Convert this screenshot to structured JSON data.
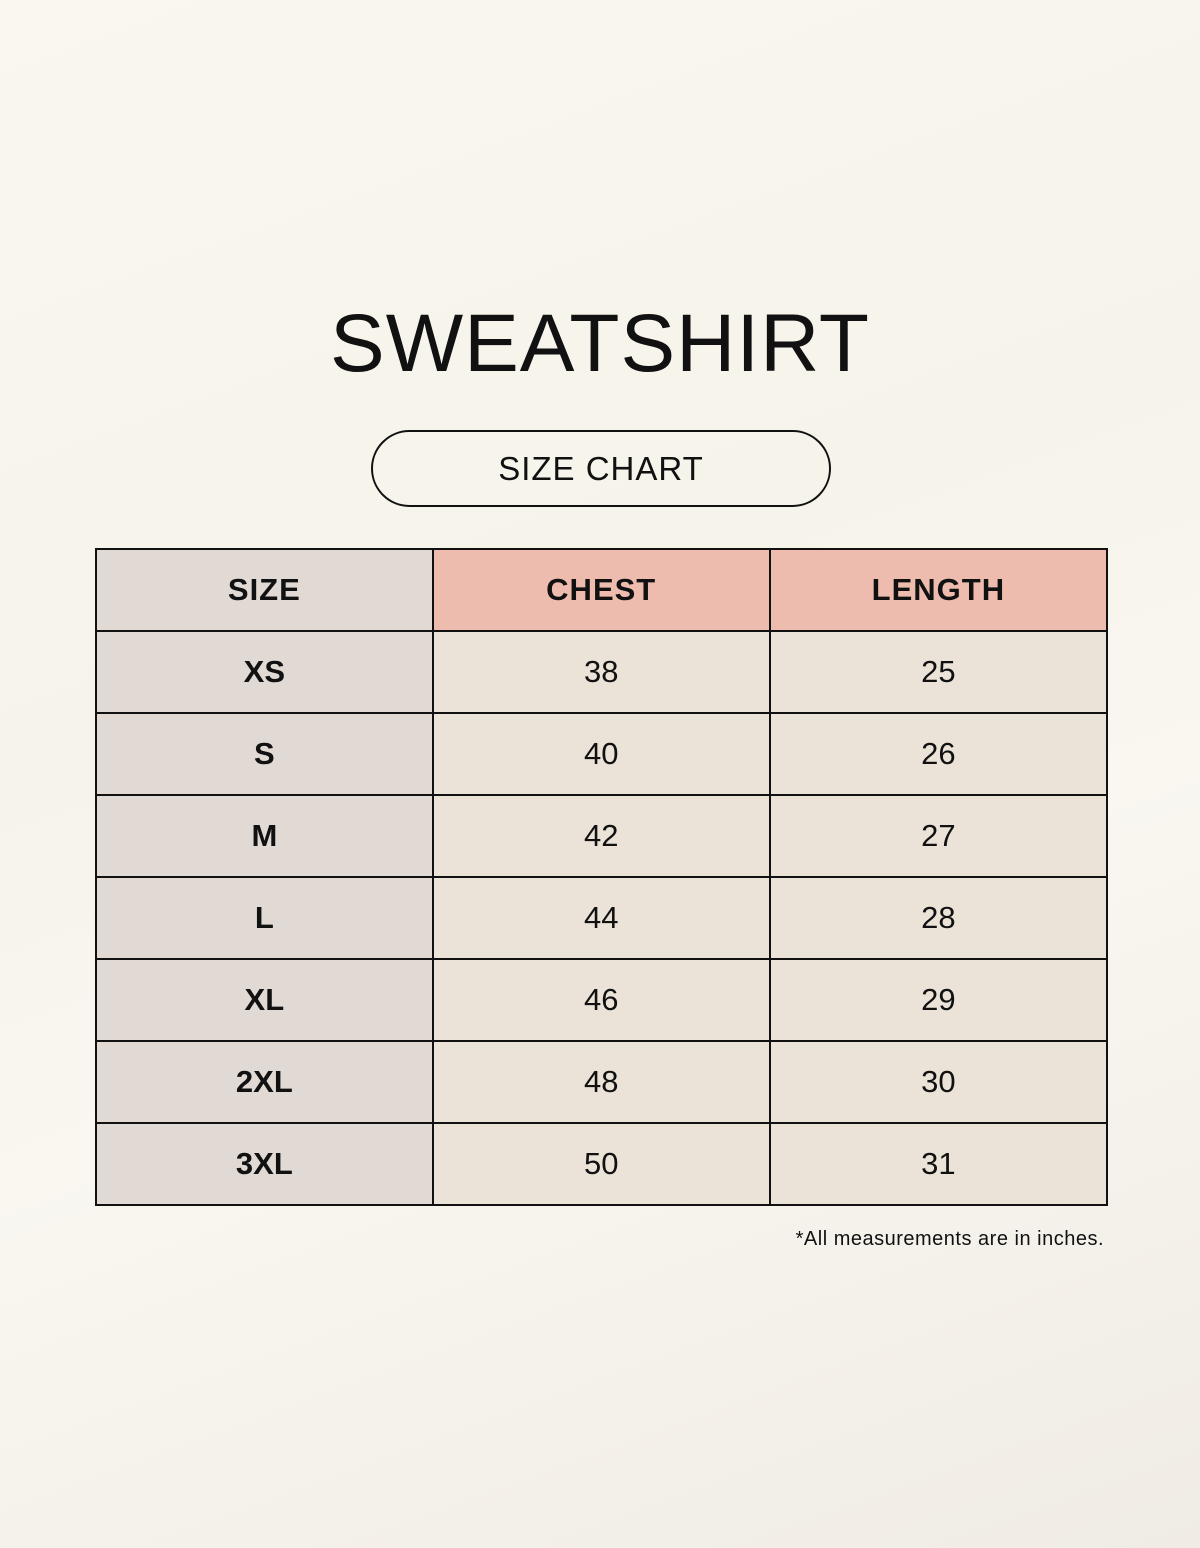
{
  "title": "SWEATSHIRT",
  "subtitle": "SIZE CHART",
  "colors": {
    "background": "#f8f6ef",
    "size_column": "#e0d9d4",
    "header_highlight": "#eebcae",
    "body_cells": "#ebe3d8",
    "border": "#111111"
  },
  "table": {
    "headers": [
      "SIZE",
      "CHEST",
      "LENGTH"
    ],
    "rows": [
      [
        "XS",
        "38",
        "25"
      ],
      [
        "S",
        "40",
        "26"
      ],
      [
        "M",
        "42",
        "27"
      ],
      [
        "L",
        "44",
        "28"
      ],
      [
        "XL",
        "46",
        "29"
      ],
      [
        "2XL",
        "48",
        "30"
      ],
      [
        "3XL",
        "50",
        "31"
      ]
    ]
  },
  "footnote": "*All measurements are in inches."
}
